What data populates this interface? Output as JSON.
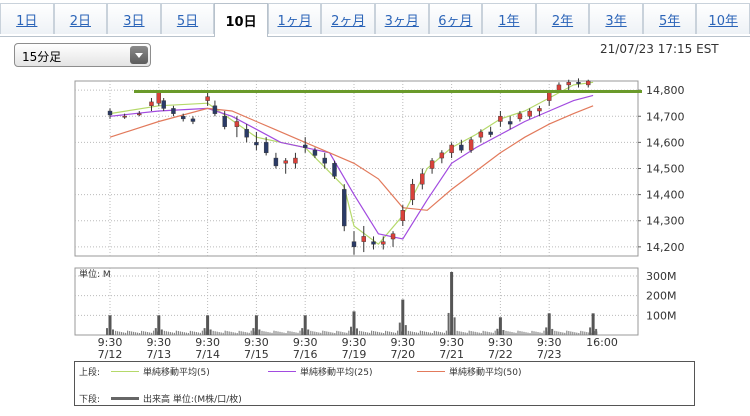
{
  "tabs": [
    {
      "label": "1日",
      "active": false
    },
    {
      "label": "2日",
      "active": false
    },
    {
      "label": "3日",
      "active": false
    },
    {
      "label": "5日",
      "active": false
    },
    {
      "label": "10日",
      "active": true
    },
    {
      "label": "1ヶ月",
      "active": false
    },
    {
      "label": "2ヶ月",
      "active": false
    },
    {
      "label": "3ヶ月",
      "active": false
    },
    {
      "label": "6ヶ月",
      "active": false
    },
    {
      "label": "1年",
      "active": false
    },
    {
      "label": "2年",
      "active": false
    },
    {
      "label": "3年",
      "active": false
    },
    {
      "label": "5年",
      "active": false
    },
    {
      "label": "10年",
      "active": false
    }
  ],
  "interval_select": {
    "value": "15分足"
  },
  "timestamp": "21/07/23 17:15 EST",
  "chart_data": [
    {
      "type": "line",
      "name": "price",
      "y_ticks": [
        "14,800",
        "14,700",
        "14,600",
        "14,500",
        "14,400",
        "14,300",
        "14,200"
      ],
      "ylim": [
        14165,
        14835
      ],
      "x_ticks": [
        {
          "time": "9:30",
          "date": "7/12"
        },
        {
          "time": "9:30",
          "date": "7/13"
        },
        {
          "time": "9:30",
          "date": "7/14"
        },
        {
          "time": "9:30",
          "date": "7/15"
        },
        {
          "time": "9:30",
          "date": "7/16"
        },
        {
          "time": "9:30",
          "date": "7/19"
        },
        {
          "time": "9:30",
          "date": "7/20"
        },
        {
          "time": "9:30",
          "date": "7/21"
        },
        {
          "time": "9:30",
          "date": "7/22"
        },
        {
          "time": "9:30",
          "date": "7/23"
        },
        {
          "time": "16:00",
          "date": ""
        }
      ],
      "price_path": [
        [
          0,
          14710
        ],
        [
          0.6,
          14705
        ],
        [
          1,
          14755
        ],
        [
          1.3,
          14720
        ],
        [
          1.6,
          14700
        ],
        [
          2,
          14780
        ],
        [
          2.5,
          14700
        ],
        [
          3,
          14620
        ],
        [
          3.5,
          14540
        ],
        [
          4,
          14600
        ],
        [
          4.5,
          14560
        ],
        [
          5,
          14200
        ],
        [
          5.5,
          14210
        ],
        [
          6,
          14360
        ],
        [
          6.5,
          14560
        ],
        [
          7,
          14600
        ],
        [
          7.5,
          14650
        ],
        [
          8,
          14690
        ],
        [
          8.5,
          14730
        ],
        [
          9,
          14780
        ],
        [
          9.3,
          14840
        ],
        [
          9.9,
          14830
        ]
      ],
      "candles": [
        [
          0.0,
          14720,
          14730,
          14690,
          14705
        ],
        [
          0.3,
          14700,
          14710,
          14690,
          14700
        ],
        [
          0.6,
          14705,
          14720,
          14700,
          14710
        ],
        [
          0.85,
          14740,
          14770,
          14720,
          14755
        ],
        [
          1.0,
          14750,
          14800,
          14740,
          14790
        ],
        [
          1.1,
          14760,
          14770,
          14720,
          14730
        ],
        [
          1.3,
          14730,
          14740,
          14700,
          14710
        ],
        [
          1.5,
          14700,
          14710,
          14680,
          14690
        ],
        [
          1.7,
          14690,
          14700,
          14670,
          14680
        ],
        [
          2.0,
          14760,
          14790,
          14740,
          14775
        ],
        [
          2.15,
          14740,
          14760,
          14700,
          14710
        ],
        [
          2.35,
          14700,
          14720,
          14650,
          14660
        ],
        [
          2.6,
          14660,
          14700,
          14620,
          14680
        ],
        [
          2.8,
          14650,
          14670,
          14600,
          14620
        ],
        [
          3.0,
          14600,
          14640,
          14570,
          14590
        ],
        [
          3.2,
          14600,
          14620,
          14550,
          14560
        ],
        [
          3.4,
          14540,
          14560,
          14500,
          14510
        ],
        [
          3.6,
          14520,
          14540,
          14480,
          14530
        ],
        [
          3.8,
          14520,
          14560,
          14500,
          14540
        ],
        [
          4.0,
          14590,
          14620,
          14560,
          14580
        ],
        [
          4.2,
          14570,
          14580,
          14540,
          14550
        ],
        [
          4.4,
          14540,
          14560,
          14500,
          14520
        ],
        [
          4.6,
          14520,
          14530,
          14460,
          14470
        ],
        [
          4.8,
          14420,
          14440,
          14260,
          14280
        ],
        [
          5.0,
          14220,
          14260,
          14170,
          14200
        ],
        [
          5.2,
          14220,
          14280,
          14180,
          14240
        ],
        [
          5.4,
          14220,
          14240,
          14190,
          14210
        ],
        [
          5.6,
          14210,
          14240,
          14190,
          14220
        ],
        [
          5.8,
          14230,
          14260,
          14200,
          14250
        ],
        [
          6.0,
          14300,
          14360,
          14280,
          14340
        ],
        [
          6.2,
          14380,
          14460,
          14360,
          14440
        ],
        [
          6.4,
          14440,
          14500,
          14420,
          14480
        ],
        [
          6.6,
          14500,
          14540,
          14480,
          14530
        ],
        [
          6.8,
          14540,
          14570,
          14520,
          14560
        ],
        [
          7.0,
          14560,
          14600,
          14540,
          14590
        ],
        [
          7.2,
          14590,
          14610,
          14560,
          14570
        ],
        [
          7.4,
          14570,
          14620,
          14560,
          14610
        ],
        [
          7.6,
          14620,
          14650,
          14600,
          14640
        ],
        [
          7.8,
          14640,
          14660,
          14620,
          14630
        ],
        [
          8.0,
          14680,
          14720,
          14660,
          14700
        ],
        [
          8.2,
          14680,
          14700,
          14650,
          14670
        ],
        [
          8.4,
          14690,
          14720,
          14680,
          14710
        ],
        [
          8.6,
          14700,
          14730,
          14690,
          14720
        ],
        [
          8.8,
          14720,
          14740,
          14700,
          14730
        ],
        [
          9.0,
          14760,
          14800,
          14740,
          14790
        ],
        [
          9.2,
          14800,
          14830,
          14790,
          14820
        ],
        [
          9.4,
          14820,
          14840,
          14800,
          14830
        ],
        [
          9.6,
          14830,
          14845,
          14810,
          14825
        ],
        [
          9.8,
          14820,
          14840,
          14810,
          14835
        ]
      ],
      "series": [
        {
          "name": "単純移動平均(5)",
          "color": "#b5d96a",
          "values": [
            [
              0,
              14710
            ],
            [
              1,
              14740
            ],
            [
              2,
              14750
            ],
            [
              3,
              14620
            ],
            [
              4,
              14580
            ],
            [
              4.8,
              14430
            ],
            [
              5,
              14280
            ],
            [
              5.5,
              14210
            ],
            [
              6,
              14320
            ],
            [
              6.5,
              14500
            ],
            [
              7,
              14580
            ],
            [
              7.5,
              14630
            ],
            [
              8,
              14690
            ],
            [
              8.5,
              14720
            ],
            [
              9,
              14770
            ],
            [
              9.5,
              14820
            ],
            [
              9.9,
              14830
            ]
          ]
        },
        {
          "name": "単純移動平均(25)",
          "color": "#a24be0",
          "values": [
            [
              0,
              14700
            ],
            [
              1,
              14720
            ],
            [
              2,
              14730
            ],
            [
              2.5,
              14700
            ],
            [
              3,
              14650
            ],
            [
              3.5,
              14600
            ],
            [
              4,
              14580
            ],
            [
              4.5,
              14560
            ],
            [
              5,
              14400
            ],
            [
              5.5,
              14250
            ],
            [
              6,
              14230
            ],
            [
              6.5,
              14380
            ],
            [
              7,
              14520
            ],
            [
              7.5,
              14580
            ],
            [
              8,
              14630
            ],
            [
              8.5,
              14680
            ],
            [
              9,
              14720
            ],
            [
              9.5,
              14760
            ],
            [
              9.9,
              14780
            ]
          ]
        },
        {
          "name": "単純移動平均(50)",
          "color": "#e27a5c",
          "values": [
            [
              0,
              14620
            ],
            [
              1,
              14680
            ],
            [
              2,
              14730
            ],
            [
              2.5,
              14720
            ],
            [
              3,
              14680
            ],
            [
              3.5,
              14640
            ],
            [
              4,
              14600
            ],
            [
              4.5,
              14560
            ],
            [
              5,
              14520
            ],
            [
              5.5,
              14460
            ],
            [
              6,
              14350
            ],
            [
              6.5,
              14340
            ],
            [
              7,
              14420
            ],
            [
              7.5,
              14490
            ],
            [
              8,
              14560
            ],
            [
              8.5,
              14620
            ],
            [
              9,
              14670
            ],
            [
              9.5,
              14710
            ],
            [
              9.9,
              14740
            ]
          ]
        }
      ],
      "reference_line": {
        "value": 14795,
        "color": "#6a9a2a"
      }
    },
    {
      "type": "bar",
      "name": "volume",
      "unit_label": "単位: M",
      "y_ticks": [
        "300M",
        "200M",
        "100M"
      ],
      "ylim": [
        0,
        320
      ],
      "day_spikes": [
        [
          0,
          100
        ],
        [
          1,
          100
        ],
        [
          2,
          100
        ],
        [
          3,
          100
        ],
        [
          4,
          100
        ],
        [
          5,
          120
        ],
        [
          6,
          180
        ],
        [
          7,
          320
        ],
        [
          8,
          90
        ],
        [
          9,
          110
        ],
        [
          9.9,
          110
        ]
      ]
    }
  ],
  "legend": {
    "upper_label": "上段:",
    "lower_label": "下段:",
    "items": [
      {
        "name": "単純移動平均(5)",
        "color": "#b5d96a"
      },
      {
        "name": "単純移動平均(25)",
        "color": "#a24be0"
      },
      {
        "name": "単純移動平均(50)",
        "color": "#e27a5c"
      }
    ],
    "volume_item": {
      "name": "出来高 単位:(M株/口/枚)",
      "color": "#666666"
    }
  }
}
